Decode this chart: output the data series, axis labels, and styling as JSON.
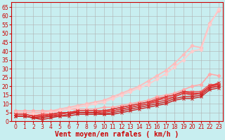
{
  "title": "",
  "xlabel": "Vent moyen/en rafales ( km/h )",
  "ylabel": "",
  "background_color": "#c8eef0",
  "grid_color": "#b0b0b0",
  "xlim": [
    -0.5,
    23.5
  ],
  "ylim": [
    0,
    68
  ],
  "yticks": [
    0,
    5,
    10,
    15,
    20,
    25,
    30,
    35,
    40,
    45,
    50,
    55,
    60,
    65
  ],
  "xticks": [
    0,
    1,
    2,
    3,
    4,
    5,
    6,
    7,
    8,
    9,
    10,
    11,
    12,
    13,
    14,
    15,
    16,
    17,
    18,
    19,
    20,
    21,
    22,
    23
  ],
  "series": [
    {
      "x": [
        0,
        1,
        2,
        3,
        4,
        5,
        6,
        7,
        8,
        9,
        10,
        11,
        12,
        13,
        14,
        15,
        16,
        17,
        18,
        19,
        20,
        21,
        22,
        23
      ],
      "y": [
        6,
        6,
        6,
        6,
        6,
        6,
        7,
        7,
        7,
        7,
        8,
        8,
        9,
        10,
        11,
        12,
        14,
        15,
        16,
        18,
        20,
        21,
        27,
        26
      ],
      "color": "#ffaaaa",
      "lw": 1.2,
      "marker": "D",
      "ms": 2.5
    },
    {
      "x": [
        0,
        1,
        2,
        3,
        4,
        5,
        6,
        7,
        8,
        9,
        10,
        11,
        12,
        13,
        14,
        15,
        16,
        17,
        18,
        19,
        20,
        21,
        22,
        23
      ],
      "y": [
        5,
        5,
        5,
        5,
        6,
        7,
        8,
        9,
        10,
        11,
        12,
        14,
        16,
        18,
        20,
        23,
        26,
        29,
        33,
        38,
        43,
        42,
        56,
        63
      ],
      "color": "#ffbbbb",
      "lw": 1.3,
      "marker": "D",
      "ms": 2.5
    },
    {
      "x": [
        0,
        1,
        2,
        3,
        4,
        5,
        6,
        7,
        8,
        9,
        10,
        11,
        12,
        13,
        14,
        15,
        16,
        17,
        18,
        19,
        20,
        21,
        22,
        23
      ],
      "y": [
        4,
        4,
        4,
        4,
        5,
        6,
        7,
        8,
        9,
        10,
        11,
        13,
        15,
        17,
        19,
        21,
        24,
        27,
        31,
        35,
        40,
        41,
        55,
        64
      ],
      "color": "#ffcccc",
      "lw": 1.3,
      "marker": "D",
      "ms": 2.5
    },
    {
      "x": [
        0,
        1,
        2,
        3,
        4,
        5,
        6,
        7,
        8,
        9,
        10,
        11,
        12,
        13,
        14,
        15,
        16,
        17,
        18,
        19,
        20,
        21,
        22,
        23
      ],
      "y": [
        4,
        4,
        3,
        4,
        4,
        4,
        5,
        5,
        5,
        5,
        6,
        6,
        7,
        8,
        9,
        10,
        12,
        13,
        14,
        16,
        16,
        16,
        20,
        20
      ],
      "color": "#ee5555",
      "lw": 1.0,
      "marker": "x",
      "ms": 3
    },
    {
      "x": [
        0,
        1,
        2,
        3,
        4,
        5,
        6,
        7,
        8,
        9,
        10,
        11,
        12,
        13,
        14,
        15,
        16,
        17,
        18,
        19,
        20,
        21,
        22,
        23
      ],
      "y": [
        4,
        4,
        3,
        4,
        4,
        5,
        5,
        6,
        6,
        6,
        6,
        7,
        8,
        9,
        10,
        11,
        13,
        14,
        15,
        17,
        17,
        17,
        21,
        21
      ],
      "color": "#ee5555",
      "lw": 1.0,
      "marker": "x",
      "ms": 3
    },
    {
      "x": [
        0,
        1,
        2,
        3,
        4,
        5,
        6,
        7,
        8,
        9,
        10,
        11,
        12,
        13,
        14,
        15,
        16,
        17,
        18,
        19,
        20,
        21,
        22,
        23
      ],
      "y": [
        4,
        4,
        3,
        3,
        4,
        5,
        5,
        6,
        6,
        6,
        6,
        7,
        8,
        9,
        10,
        11,
        12,
        14,
        15,
        17,
        16,
        16,
        20,
        22
      ],
      "color": "#dd3333",
      "lw": 1.0,
      "marker": "x",
      "ms": 3
    },
    {
      "x": [
        0,
        1,
        2,
        3,
        4,
        5,
        6,
        7,
        8,
        9,
        10,
        11,
        12,
        13,
        14,
        15,
        16,
        17,
        18,
        19,
        20,
        21,
        22,
        23
      ],
      "y": [
        3,
        3,
        2,
        3,
        3,
        4,
        5,
        5,
        5,
        5,
        5,
        6,
        7,
        8,
        9,
        10,
        11,
        12,
        14,
        16,
        15,
        16,
        20,
        21
      ],
      "color": "#dd3333",
      "lw": 1.0,
      "marker": "x",
      "ms": 3
    },
    {
      "x": [
        0,
        1,
        2,
        3,
        4,
        5,
        6,
        7,
        8,
        9,
        10,
        11,
        12,
        13,
        14,
        15,
        16,
        17,
        18,
        19,
        20,
        21,
        22,
        23
      ],
      "y": [
        3,
        3,
        2,
        2,
        3,
        3,
        4,
        5,
        5,
        5,
        4,
        5,
        6,
        7,
        8,
        9,
        10,
        11,
        13,
        14,
        14,
        15,
        19,
        20
      ],
      "color": "#cc2222",
      "lw": 1.0,
      "marker": "x",
      "ms": 3
    },
    {
      "x": [
        0,
        1,
        2,
        3,
        4,
        5,
        6,
        7,
        8,
        9,
        10,
        11,
        12,
        13,
        14,
        15,
        16,
        17,
        18,
        19,
        20,
        21,
        22,
        23
      ],
      "y": [
        3,
        3,
        2,
        1,
        2,
        3,
        3,
        4,
        4,
        4,
        4,
        4,
        5,
        6,
        7,
        8,
        9,
        10,
        12,
        13,
        13,
        14,
        18,
        19
      ],
      "color": "#cc2222",
      "lw": 1.0,
      "marker": "x",
      "ms": 3
    }
  ],
  "xlabel_color": "#cc0000",
  "xlabel_fontsize": 7,
  "tick_color": "#cc0000",
  "tick_fontsize": 5.5,
  "border_color": "#cc0000"
}
